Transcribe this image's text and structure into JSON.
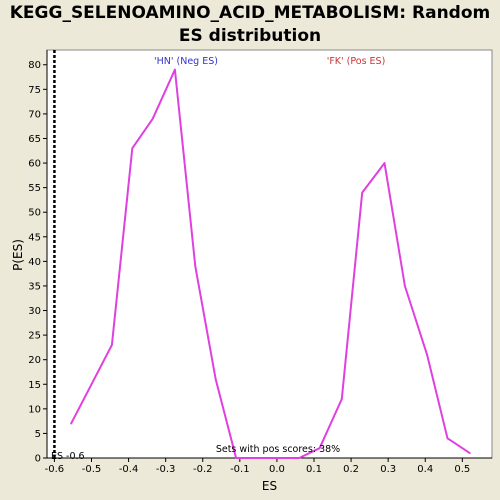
{
  "chart_data": {
    "type": "line",
    "title_line1": "KEGG_SELENOAMINO_ACID_METABOLISM: Random",
    "title_line2": "ES distribution",
    "xlabel": "ES",
    "ylabel": "P(ES)",
    "xlim": [
      -0.62,
      0.58
    ],
    "ylim": [
      0,
      83
    ],
    "xticks": [
      -0.6,
      -0.5,
      -0.4,
      -0.3,
      -0.2,
      -0.1,
      0.0,
      0.1,
      0.2,
      0.3,
      0.4,
      0.5
    ],
    "xtick_labels": [
      "-0.6",
      "-0.5",
      "-0.4",
      "-0.3",
      "-0.2",
      "-0.1",
      "0.0",
      "0.1",
      "0.2",
      "0.3",
      "0.4",
      "0.5"
    ],
    "yticks": [
      0,
      5,
      10,
      15,
      20,
      25,
      30,
      35,
      40,
      45,
      50,
      55,
      60,
      65,
      70,
      75,
      80
    ],
    "grid": false,
    "series": [
      {
        "color": "#e040e0",
        "x": [
          -0.555,
          -0.5,
          -0.445,
          -0.39,
          -0.335,
          -0.275,
          -0.22,
          -0.165,
          -0.11,
          -0.055,
          0.0,
          0.06,
          0.115,
          0.175,
          0.23,
          0.29,
          0.345,
          0.405,
          0.46,
          0.52
        ],
        "y": [
          7,
          15,
          23,
          63,
          69,
          79,
          39,
          16,
          0,
          0,
          0,
          0,
          2,
          12,
          54,
          60,
          35,
          21,
          4,
          1
        ]
      }
    ],
    "annotations": [
      {
        "id": "neg",
        "text": "'HN' (Neg ES)",
        "color": "#3333cc"
      },
      {
        "id": "pos",
        "text": "'FK' (Pos ES)",
        "color": "#cc3333"
      },
      {
        "id": "pos_scores",
        "text": "Sets with pos scores: 38%",
        "color": "#000000"
      },
      {
        "id": "es_marker",
        "text": "ES -0.6",
        "color": "#000000"
      }
    ],
    "es_marker_x": -0.6
  }
}
